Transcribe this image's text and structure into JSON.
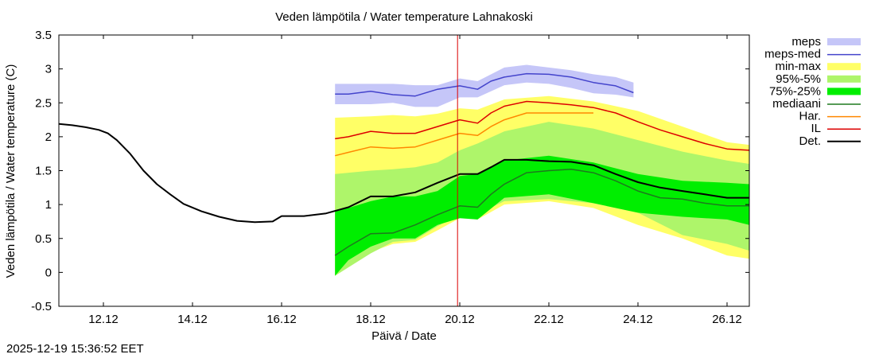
{
  "chart_data": {
    "type": "line",
    "title": "Veden lämpötila / Water temperature Lahnakoski",
    "xlabel": "Päivä / Date",
    "ylabel": "Veden lämpötila / Water temperature (C)",
    "x_unit": "days",
    "xlim": [
      0,
      15.5
    ],
    "ylim": [
      -0.5,
      3.5
    ],
    "yticks": [
      -0.5,
      0,
      0.5,
      1,
      1.5,
      2,
      2.5,
      3,
      3.5
    ],
    "ytick_labels": [
      "-0.5",
      "0",
      "0.5",
      "1",
      "1.5",
      "2",
      "2.5",
      "3",
      "3.5"
    ],
    "xticks": [
      1,
      3,
      5,
      7,
      9,
      11,
      13,
      15
    ],
    "xtick_labels": [
      "12.12",
      "14.12",
      "16.12",
      "18.12",
      "20.12",
      "22.12",
      "24.12",
      "26.12"
    ],
    "current_time_x": 8.95,
    "legend_position": "right",
    "legend": [
      {
        "label": "meps",
        "kind": "band",
        "color": "#c5c6f8"
      },
      {
        "label": "meps-med",
        "kind": "line",
        "color": "#4444cc"
      },
      {
        "label": "min-max",
        "kind": "band",
        "color": "#ffff66"
      },
      {
        "label": "95%-5%",
        "kind": "band",
        "color": "#aef56a"
      },
      {
        "label": "75%-25%",
        "kind": "band",
        "color": "#00ee00"
      },
      {
        "label": "mediaani",
        "kind": "line",
        "color": "#1e7a1e"
      },
      {
        "label": "Har.",
        "kind": "line",
        "color": "#ff8800"
      },
      {
        "label": "IL",
        "kind": "line",
        "color": "#dd0000"
      },
      {
        "label": "Det.",
        "kind": "line",
        "color": "#000000"
      }
    ],
    "bands": [
      {
        "name": "min-max",
        "color": "#ffff66",
        "x": [
          6.2,
          7.0,
          7.5,
          8.0,
          8.5,
          9.0,
          9.4,
          10.0,
          11.0,
          12.0,
          13.0,
          14.0,
          15.0,
          15.5
        ],
        "upper": [
          2.28,
          2.3,
          2.32,
          2.3,
          2.34,
          2.42,
          2.4,
          2.55,
          2.6,
          2.52,
          2.38,
          2.15,
          1.92,
          1.88
        ],
        "lower": [
          -0.05,
          0.3,
          0.42,
          0.45,
          0.62,
          0.8,
          0.78,
          1.0,
          1.05,
          0.95,
          0.7,
          0.5,
          0.25,
          0.2
        ]
      },
      {
        "name": "95%-5%",
        "color": "#aef56a",
        "x": [
          6.2,
          7.0,
          7.5,
          8.0,
          8.5,
          9.0,
          9.4,
          10.0,
          11.0,
          12.0,
          13.0,
          14.0,
          15.0,
          15.5
        ],
        "upper": [
          1.45,
          1.5,
          1.52,
          1.55,
          1.62,
          1.8,
          1.9,
          2.08,
          2.22,
          2.12,
          1.95,
          1.78,
          1.65,
          1.6
        ],
        "lower": [
          -0.05,
          0.28,
          0.45,
          0.48,
          0.68,
          0.86,
          0.86,
          1.05,
          1.08,
          1.02,
          0.88,
          0.55,
          0.42,
          0.32
        ]
      },
      {
        "name": "75%-25%",
        "color": "#00ee00",
        "x": [
          6.2,
          6.5,
          7.0,
          7.5,
          8.0,
          8.5,
          9.0,
          9.4,
          10.0,
          11.0,
          12.0,
          13.0,
          14.0,
          15.0,
          15.5
        ],
        "upper": [
          0.9,
          0.95,
          1.05,
          1.12,
          1.12,
          1.2,
          1.42,
          1.45,
          1.65,
          1.72,
          1.62,
          1.45,
          1.35,
          1.32,
          1.3
        ],
        "lower": [
          -0.05,
          0.18,
          0.38,
          0.5,
          0.5,
          0.7,
          0.8,
          0.78,
          1.1,
          1.15,
          1.02,
          0.88,
          0.82,
          0.78,
          0.7
        ]
      }
    ],
    "series": [
      {
        "name": "meps",
        "kind": "band",
        "color": "#c5c6f8",
        "x": [
          6.2,
          7.0,
          7.5,
          8.0,
          8.5,
          9.0,
          9.4,
          10.0,
          10.5,
          11.0,
          11.5,
          12.0,
          12.5,
          12.9
        ],
        "upper": [
          2.78,
          2.78,
          2.78,
          2.76,
          2.76,
          2.86,
          2.82,
          3.02,
          3.06,
          3.02,
          2.98,
          2.92,
          2.88,
          2.8
        ],
        "lower": [
          2.48,
          2.48,
          2.5,
          2.44,
          2.44,
          2.58,
          2.58,
          2.76,
          2.8,
          2.78,
          2.72,
          2.64,
          2.62,
          2.58
        ]
      },
      {
        "name": "meps-med",
        "color": "#4444cc",
        "x": [
          6.2,
          6.5,
          7.0,
          7.5,
          8.0,
          8.5,
          9.0,
          9.4,
          9.7,
          10.0,
          10.5,
          11.0,
          11.5,
          12.0,
          12.5,
          12.9
        ],
        "y": [
          2.63,
          2.63,
          2.67,
          2.62,
          2.6,
          2.7,
          2.75,
          2.7,
          2.82,
          2.88,
          2.93,
          2.92,
          2.88,
          2.8,
          2.75,
          2.65
        ]
      },
      {
        "name": "IL",
        "color": "#dd0000",
        "x": [
          6.2,
          6.5,
          7.0,
          7.5,
          8.0,
          8.5,
          9.0,
          9.4,
          9.7,
          10.0,
          10.5,
          11.0,
          11.5,
          12.0,
          12.5,
          13.0,
          13.5,
          14.0,
          14.5,
          15.0,
          15.5
        ],
        "y": [
          1.97,
          2.0,
          2.08,
          2.05,
          2.05,
          2.15,
          2.25,
          2.2,
          2.35,
          2.45,
          2.52,
          2.5,
          2.47,
          2.43,
          2.35,
          2.22,
          2.1,
          2.0,
          1.9,
          1.82,
          1.8
        ]
      },
      {
        "name": "Har.",
        "color": "#ff8800",
        "x": [
          6.2,
          6.5,
          7.0,
          7.5,
          8.0,
          8.5,
          9.0,
          9.4,
          9.7,
          10.0,
          10.5,
          11.0,
          11.5,
          12.0
        ],
        "y": [
          1.72,
          1.77,
          1.85,
          1.83,
          1.85,
          1.95,
          2.05,
          2.02,
          2.15,
          2.25,
          2.35,
          2.35,
          2.35,
          2.35
        ]
      },
      {
        "name": "mediaani",
        "color": "#1e7a1e",
        "x": [
          6.2,
          6.5,
          7.0,
          7.5,
          8.0,
          8.5,
          9.0,
          9.4,
          9.7,
          10.0,
          10.5,
          11.0,
          11.5,
          12.0,
          12.5,
          13.0,
          13.5,
          14.0,
          14.5,
          15.0,
          15.5
        ],
        "y": [
          0.25,
          0.38,
          0.57,
          0.58,
          0.7,
          0.85,
          0.98,
          0.96,
          1.15,
          1.3,
          1.47,
          1.5,
          1.52,
          1.47,
          1.35,
          1.2,
          1.1,
          1.08,
          1.02,
          0.98,
          0.98
        ]
      },
      {
        "name": "Det.",
        "color": "#000000",
        "x": [
          0,
          0.3,
          0.6,
          0.9,
          1.1,
          1.3,
          1.6,
          1.9,
          2.2,
          2.5,
          2.8,
          3.2,
          3.6,
          4.0,
          4.4,
          4.8,
          5.0,
          5.5,
          6.0,
          6.5,
          7.0,
          7.5,
          8.0,
          8.5,
          9.0,
          9.4,
          9.7,
          10.0,
          10.5,
          11.0,
          11.5,
          12.0,
          12.5,
          13.0,
          13.5,
          14.0,
          14.5,
          15.0,
          15.5
        ],
        "y": [
          2.19,
          2.17,
          2.14,
          2.1,
          2.05,
          1.95,
          1.75,
          1.5,
          1.3,
          1.15,
          1.01,
          0.9,
          0.82,
          0.76,
          0.74,
          0.75,
          0.83,
          0.83,
          0.87,
          0.96,
          1.12,
          1.12,
          1.18,
          1.32,
          1.45,
          1.45,
          1.55,
          1.66,
          1.66,
          1.64,
          1.63,
          1.58,
          1.45,
          1.33,
          1.25,
          1.2,
          1.15,
          1.1,
          1.1
        ]
      }
    ]
  },
  "footer": {
    "timestamp": "2025-12-19 15:36:52 EET"
  }
}
